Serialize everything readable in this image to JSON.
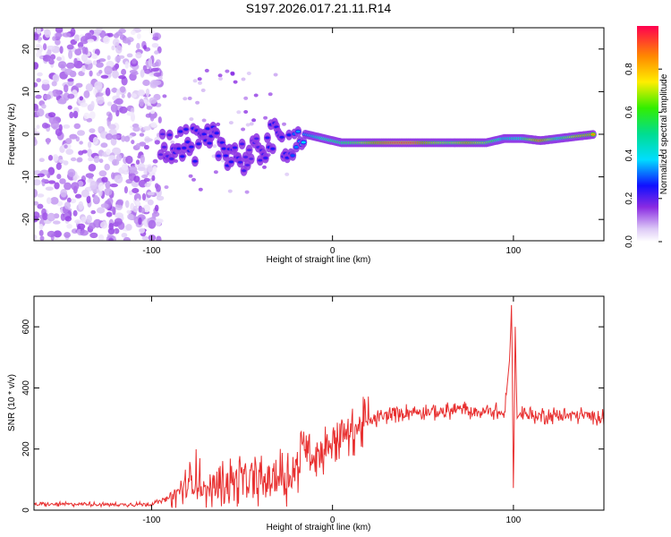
{
  "title": "S197.2026.017.21.11.R14",
  "colorbar": {
    "label": "Normalized spectral amplitude",
    "ticks": [
      "0.0",
      "0.2",
      "0.4",
      "0.6",
      "0.8"
    ],
    "tick_values": [
      0.0,
      0.2,
      0.4,
      0.6,
      0.8
    ],
    "range": [
      0,
      1
    ]
  },
  "chart_data": [
    {
      "type": "heatmap",
      "title": "S197.2026.017.21.11.R14",
      "xlabel": "Height of straight line (km)",
      "ylabel": "Frequency (Hz)",
      "xlim": [
        -165,
        150
      ],
      "ylim": [
        -25,
        25
      ],
      "xticks": [
        -100,
        0,
        100
      ],
      "xtick_labels": [
        "-100",
        "0",
        "100"
      ],
      "yticks": [
        -20,
        -10,
        0,
        10,
        20
      ],
      "ytick_labels": [
        "-20",
        "-10",
        "0",
        "10",
        "20"
      ],
      "colormap": "rainbow",
      "noise_region": {
        "x": [
          -165,
          -95
        ],
        "y": [
          -25,
          25
        ],
        "amplitude": [
          0.02,
          0.15
        ]
      },
      "ridge": [
        {
          "x": -95,
          "y": -3,
          "amp": 0.2
        },
        {
          "x": -85,
          "y": -1,
          "amp": 0.25
        },
        {
          "x": -75,
          "y": -3,
          "amp": 0.25
        },
        {
          "x": -65,
          "y": -2,
          "amp": 0.25
        },
        {
          "x": -55,
          "y": -4,
          "amp": 0.25
        },
        {
          "x": -45,
          "y": -6,
          "amp": 0.2
        },
        {
          "x": -35,
          "y": -1,
          "amp": 0.25
        },
        {
          "x": -25,
          "y": -2,
          "amp": 0.25
        },
        {
          "x": -15,
          "y": 0,
          "amp": 0.4
        },
        {
          "x": -5,
          "y": -1,
          "amp": 0.55
        },
        {
          "x": 5,
          "y": -2,
          "amp": 0.6
        },
        {
          "x": 15,
          "y": -2,
          "amp": 0.7
        },
        {
          "x": 25,
          "y": -2,
          "amp": 0.9
        },
        {
          "x": 35,
          "y": -2,
          "amp": 1.0
        },
        {
          "x": 45,
          "y": -2,
          "amp": 1.0
        },
        {
          "x": 55,
          "y": -2,
          "amp": 0.8
        },
        {
          "x": 65,
          "y": -2,
          "amp": 0.7
        },
        {
          "x": 75,
          "y": -2,
          "amp": 0.85
        },
        {
          "x": 85,
          "y": -2,
          "amp": 0.7
        },
        {
          "x": 95,
          "y": -1,
          "amp": 0.5
        },
        {
          "x": 105,
          "y": -1,
          "amp": 0.55
        },
        {
          "x": 115,
          "y": -1.5,
          "amp": 0.95
        },
        {
          "x": 125,
          "y": -1,
          "amp": 0.55
        },
        {
          "x": 135,
          "y": -0.5,
          "amp": 0.8
        },
        {
          "x": 145,
          "y": 0,
          "amp": 0.85
        }
      ]
    },
    {
      "type": "line",
      "xlabel": "Height of straight line (km)",
      "ylabel": "SNR (10 * v/v)",
      "xlim": [
        -165,
        150
      ],
      "ylim": [
        0,
        700
      ],
      "xticks": [
        -100,
        0,
        100
      ],
      "xtick_labels": [
        "-100",
        "0",
        "100"
      ],
      "yticks": [
        0,
        200,
        400,
        600
      ],
      "ytick_labels": [
        "0",
        "200",
        "400",
        "600"
      ],
      "color": "#e83030",
      "series": [
        {
          "name": "SNR",
          "x": [
            -165,
            -140,
            -120,
            -100,
            -90,
            -80,
            -75,
            -70,
            -60,
            -50,
            -40,
            -30,
            -20,
            -15,
            -10,
            -5,
            0,
            10,
            20,
            30,
            40,
            50,
            60,
            70,
            80,
            90,
            95,
            98,
            99,
            100,
            101,
            102,
            104,
            110,
            120,
            130,
            140,
            150
          ],
          "y": [
            18,
            20,
            18,
            20,
            40,
            80,
            110,
            60,
            90,
            100,
            95,
            110,
            120,
            230,
            180,
            200,
            230,
            260,
            290,
            310,
            320,
            325,
            320,
            330,
            320,
            325,
            310,
            500,
            690,
            40,
            600,
            300,
            320,
            310,
            310,
            310,
            310,
            305
          ]
        }
      ]
    }
  ]
}
